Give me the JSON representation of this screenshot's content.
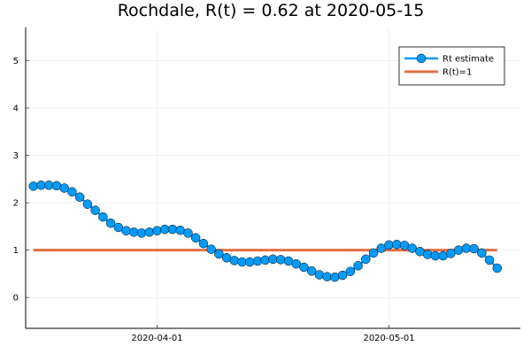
{
  "chart_data": {
    "type": "line",
    "title": "Rochdale, R(t) = 0.62 at 2020-05-15",
    "xlabel": "",
    "ylabel": "",
    "xlim": [
      "2020-03-15",
      "2020-05-18"
    ],
    "ylim": [
      -0.65,
      5.7
    ],
    "x_ticks": [
      "2020-04-01",
      "2020-05-01"
    ],
    "y_ticks": [
      0,
      1,
      2,
      3,
      4,
      5
    ],
    "grid": true,
    "legend_position": "top-right",
    "series": [
      {
        "name": "Rt estimate",
        "kind": "line-with-markers",
        "color": "#009af9",
        "x": [
          "2020-03-16",
          "2020-03-17",
          "2020-03-18",
          "2020-03-19",
          "2020-03-20",
          "2020-03-21",
          "2020-03-22",
          "2020-03-23",
          "2020-03-24",
          "2020-03-25",
          "2020-03-26",
          "2020-03-27",
          "2020-03-28",
          "2020-03-29",
          "2020-03-30",
          "2020-03-31",
          "2020-04-01",
          "2020-04-02",
          "2020-04-03",
          "2020-04-04",
          "2020-04-05",
          "2020-04-06",
          "2020-04-07",
          "2020-04-08",
          "2020-04-09",
          "2020-04-10",
          "2020-04-11",
          "2020-04-12",
          "2020-04-13",
          "2020-04-14",
          "2020-04-15",
          "2020-04-16",
          "2020-04-17",
          "2020-04-18",
          "2020-04-19",
          "2020-04-20",
          "2020-04-21",
          "2020-04-22",
          "2020-04-23",
          "2020-04-24",
          "2020-04-25",
          "2020-04-26",
          "2020-04-27",
          "2020-04-28",
          "2020-04-29",
          "2020-04-30",
          "2020-05-01",
          "2020-05-02",
          "2020-05-03",
          "2020-05-04",
          "2020-05-05",
          "2020-05-06",
          "2020-05-07",
          "2020-05-08",
          "2020-05-09",
          "2020-05-10",
          "2020-05-11",
          "2020-05-12",
          "2020-05-13",
          "2020-05-14",
          "2020-05-15"
        ],
        "values": [
          2.35,
          2.37,
          2.37,
          2.36,
          2.31,
          2.23,
          2.12,
          1.97,
          1.84,
          1.7,
          1.57,
          1.48,
          1.41,
          1.38,
          1.36,
          1.38,
          1.41,
          1.44,
          1.44,
          1.42,
          1.36,
          1.26,
          1.14,
          1.02,
          0.92,
          0.84,
          0.78,
          0.75,
          0.75,
          0.77,
          0.79,
          0.81,
          0.8,
          0.77,
          0.71,
          0.64,
          0.56,
          0.48,
          0.44,
          0.43,
          0.47,
          0.55,
          0.67,
          0.81,
          0.94,
          1.04,
          1.11,
          1.12,
          1.1,
          1.04,
          0.97,
          0.91,
          0.88,
          0.88,
          0.93,
          1.0,
          1.04,
          1.03,
          0.94,
          0.79,
          0.62
        ]
      },
      {
        "name": "R(t)=1",
        "kind": "line",
        "color": "#e26f46",
        "x": [
          "2020-03-16",
          "2020-05-15"
        ],
        "values": [
          1,
          1
        ]
      }
    ]
  }
}
